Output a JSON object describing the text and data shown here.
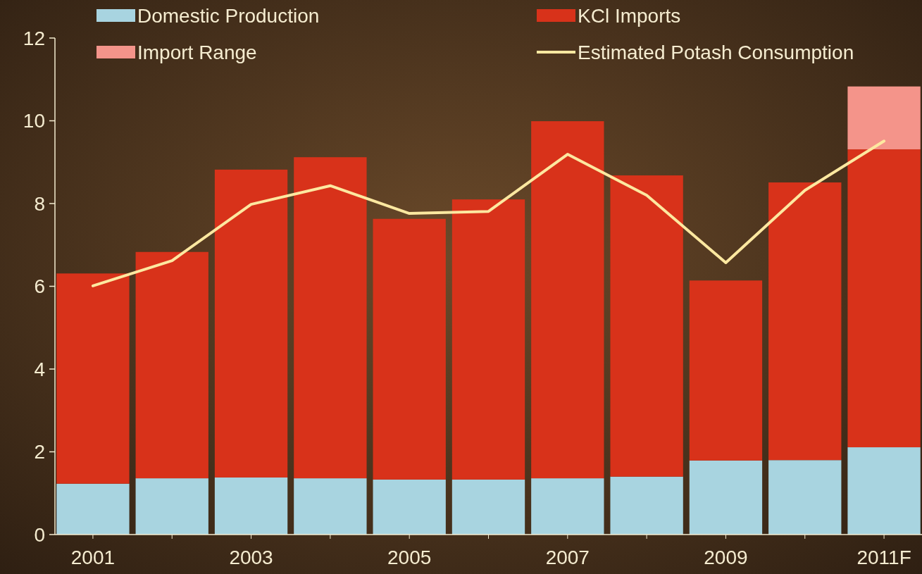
{
  "chart_data": {
    "type": "bar",
    "stacked": true,
    "categories": [
      "2001",
      null,
      "2003",
      null,
      "2005",
      null,
      "2007",
      null,
      "2009",
      null,
      "2011F"
    ],
    "series": [
      {
        "name": "Domestic Production",
        "color": "#a8d4e0",
        "values": [
          1.23,
          1.36,
          1.38,
          1.36,
          1.33,
          1.33,
          1.36,
          1.4,
          1.79,
          1.8,
          2.11
        ]
      },
      {
        "name": "KCl Imports",
        "color": "#d8321a",
        "values": [
          5.08,
          5.47,
          7.44,
          7.76,
          6.3,
          6.77,
          8.63,
          7.28,
          4.35,
          6.71,
          7.2
        ]
      },
      {
        "name": "Import Range",
        "color": "#f4948a",
        "values": [
          null,
          null,
          null,
          null,
          null,
          null,
          null,
          null,
          null,
          null,
          1.52
        ]
      },
      {
        "name": "Estimated Potash Consumption",
        "type": "line",
        "color": "#fde8a0",
        "values": [
          6.01,
          6.62,
          7.98,
          8.43,
          7.76,
          7.81,
          9.19,
          8.2,
          6.57,
          8.32,
          9.51
        ]
      }
    ],
    "ylim": [
      0,
      12
    ],
    "yticks": [
      0,
      2,
      4,
      6,
      8,
      10,
      12
    ],
    "grid": false,
    "legend": "top",
    "marker": "none",
    "line_style": "solid"
  }
}
